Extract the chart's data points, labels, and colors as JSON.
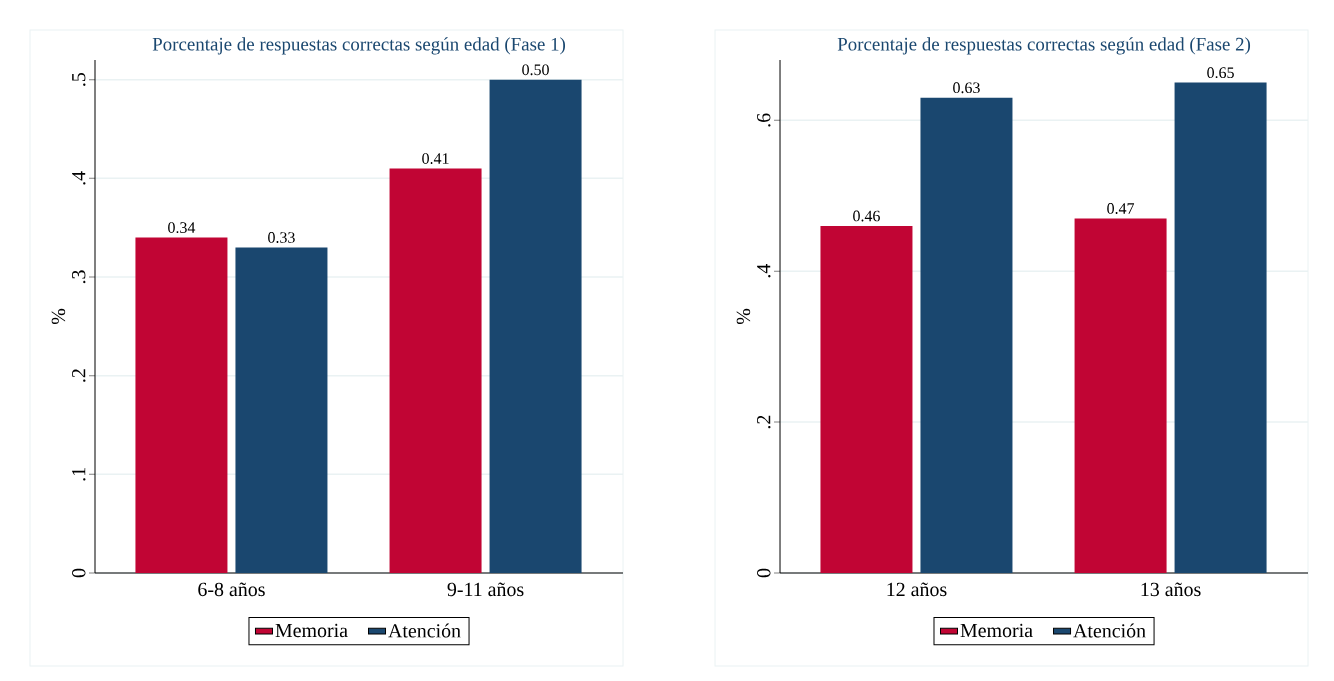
{
  "chart_data": [
    {
      "type": "bar",
      "title": "Porcentaje de respuestas correctas según edad (Fase 1)",
      "ylabel": "%",
      "categories": [
        "6-8 años",
        "9-11 años"
      ],
      "series": [
        {
          "name": "Memoria",
          "color": "#c10534",
          "values": [
            0.34,
            0.41
          ],
          "value_labels": [
            "0.34",
            "0.41"
          ]
        },
        {
          "name": "Atención",
          "color": "#1a476f",
          "values": [
            0.33,
            0.5
          ],
          "value_labels": [
            "0.33",
            "0.50"
          ]
        }
      ],
      "ylim": [
        0,
        0.52
      ],
      "yticks": [
        0,
        {
          "value": 0.1,
          "label": ".1"
        },
        {
          "value": 0.2,
          "label": ".2"
        },
        {
          "value": 0.3,
          "label": ".3"
        },
        {
          "value": 0.4,
          "label": ".4"
        },
        {
          "value": 0.5,
          "label": ".5"
        }
      ],
      "grid": "y",
      "legend": "bottom"
    },
    {
      "type": "bar",
      "title": "Porcentaje de respuestas correctas según edad (Fase 2)",
      "ylabel": "%",
      "categories": [
        "12 años",
        "13 años"
      ],
      "series": [
        {
          "name": "Memoria",
          "color": "#c10534",
          "values": [
            0.46,
            0.47
          ],
          "value_labels": [
            "0.46",
            "0.47"
          ]
        },
        {
          "name": "Atención",
          "color": "#1a476f",
          "values": [
            0.63,
            0.65
          ],
          "value_labels": [
            "0.63",
            "0.65"
          ]
        }
      ],
      "ylim": [
        0,
        0.68
      ],
      "yticks": [
        0,
        {
          "value": 0.2,
          "label": ".2"
        },
        {
          "value": 0.4,
          "label": ".4"
        },
        {
          "value": 0.6,
          "label": ".6"
        }
      ],
      "grid": "y",
      "legend": "bottom"
    }
  ]
}
